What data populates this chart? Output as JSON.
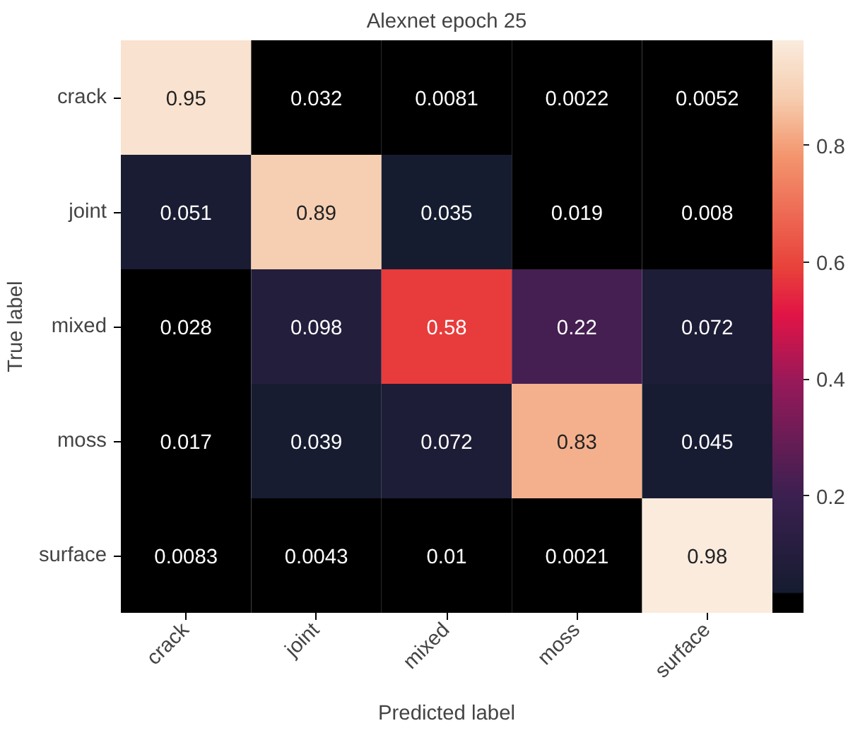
{
  "chart_data": {
    "type": "heatmap",
    "title": "Alexnet epoch 25",
    "xlabel": "Predicted label",
    "ylabel": "True label",
    "categories": [
      "crack",
      "joint",
      "mixed",
      "moss",
      "surface"
    ],
    "y_categories": [
      "crack",
      "joint",
      "mixed",
      "moss",
      "surface"
    ],
    "cells": [
      [
        0.95,
        0.032,
        0.0081,
        0.0022,
        0.0052
      ],
      [
        0.051,
        0.89,
        0.035,
        0.019,
        0.008
      ],
      [
        0.028,
        0.098,
        0.58,
        0.22,
        0.072
      ],
      [
        0.017,
        0.039,
        0.072,
        0.83,
        0.045
      ],
      [
        0.0083,
        0.0043,
        0.01,
        0.0021,
        0.98
      ]
    ],
    "data_labels": true,
    "clim": [
      0,
      0.98
    ],
    "cticks": [
      0.2,
      0.4,
      0.6,
      0.8
    ]
  }
}
